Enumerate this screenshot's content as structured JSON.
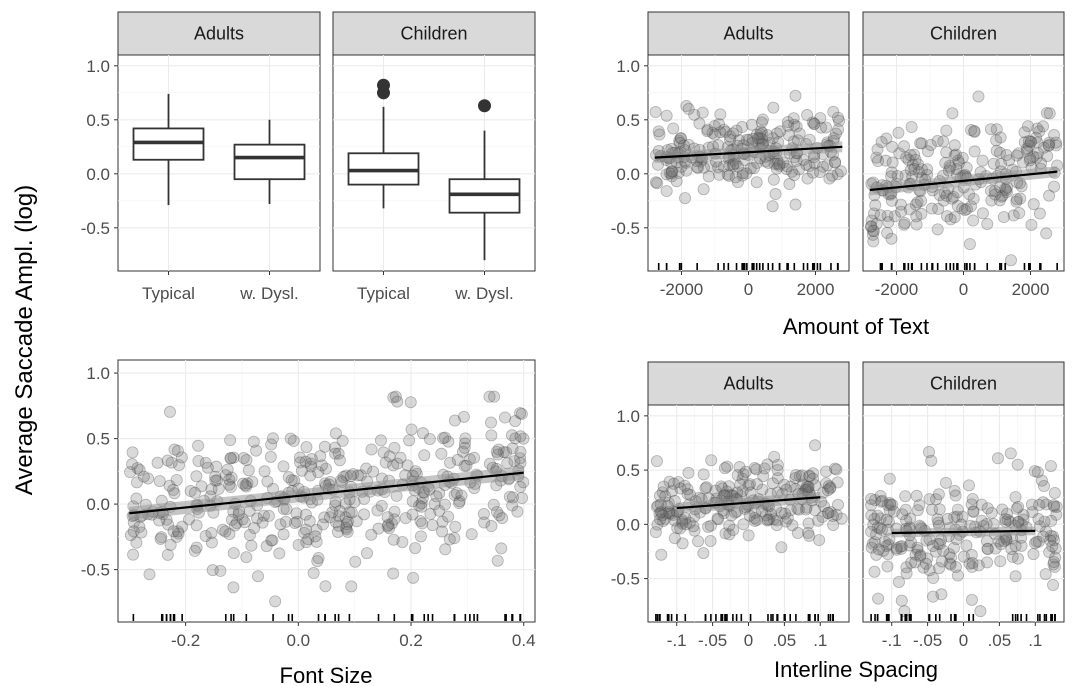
{
  "figure": {
    "y_title": "Average Saccade Ampl. (log)"
  },
  "chart_data": [
    {
      "type": "box",
      "facets": [
        "Adults",
        "Children"
      ],
      "categories": [
        "Typical",
        "w. Dysl."
      ],
      "ylim": [
        -0.9,
        1.1
      ],
      "yticks": [
        "-0.5",
        "0.0",
        "0.5",
        "1.0"
      ],
      "ytick_values": [
        -0.5,
        0.0,
        0.5,
        1.0
      ],
      "grid": true,
      "boxes": [
        {
          "facet": "Adults",
          "group": "Typical",
          "q1": 0.13,
          "median": 0.29,
          "q3": 0.42,
          "whisker_low": -0.29,
          "whisker_high": 0.74,
          "outliers": []
        },
        {
          "facet": "Adults",
          "group": "w. Dysl.",
          "q1": -0.05,
          "median": 0.15,
          "q3": 0.27,
          "whisker_low": -0.28,
          "whisker_high": 0.5,
          "outliers": []
        },
        {
          "facet": "Children",
          "group": "Typical",
          "q1": -0.1,
          "median": 0.03,
          "q3": 0.19,
          "whisker_low": -0.32,
          "whisker_high": 0.62,
          "outliers": [
            0.75,
            0.82
          ]
        },
        {
          "facet": "Children",
          "group": "w. Dysl.",
          "q1": -0.36,
          "median": -0.19,
          "q3": -0.05,
          "whisker_low": -0.8,
          "whisker_high": 0.4,
          "outliers": [
            0.63
          ]
        }
      ]
    },
    {
      "type": "scatter",
      "facets": [
        "Adults",
        "Children"
      ],
      "xlabel": "Amount of Text",
      "xlim": [
        -3000,
        3000
      ],
      "xticks": [
        "-2000",
        "0",
        "2000"
      ],
      "xtick_values": [
        -2000,
        0,
        2000
      ],
      "ylim": [
        -0.9,
        1.1
      ],
      "yticks": [
        "-0.5",
        "0.0",
        "0.5",
        "1.0"
      ],
      "ytick_values": [
        -0.5,
        0.0,
        0.5,
        1.0
      ],
      "grid": true,
      "fits": [
        {
          "facet": "Adults",
          "x": [
            -2800,
            2800
          ],
          "y": [
            0.15,
            0.25
          ],
          "ci": 0.05
        },
        {
          "facet": "Children",
          "x": [
            -2800,
            2800
          ],
          "y": [
            -0.15,
            0.02
          ],
          "ci": 0.05
        }
      ],
      "clouds": [
        {
          "facet": "Adults",
          "x_min": -2800,
          "x_max": 2800,
          "y_min": -0.3,
          "y_max": 0.75,
          "n": 230,
          "seed": 11
        },
        {
          "facet": "Children",
          "x_min": -2800,
          "x_max": 2800,
          "y_min": -0.8,
          "y_max": 0.82,
          "n": 230,
          "seed": 23
        }
      ]
    },
    {
      "type": "scatter",
      "xlabel": "Font Size",
      "xlim": [
        -0.32,
        0.42
      ],
      "xticks": [
        "-0.2",
        "0.0",
        "0.2",
        "0.4"
      ],
      "xtick_values": [
        -0.2,
        0.0,
        0.2,
        0.4
      ],
      "ylim": [
        -0.9,
        1.1
      ],
      "yticks": [
        "-0.5",
        "0.0",
        "0.5",
        "1.0"
      ],
      "ytick_values": [
        -0.5,
        0.0,
        0.5,
        1.0
      ],
      "grid": true,
      "fits": [
        {
          "x": [
            -0.3,
            0.4
          ],
          "y": [
            -0.07,
            0.24
          ],
          "ci": 0.05
        }
      ],
      "clouds": [
        {
          "x_min": -0.3,
          "x_max": 0.4,
          "y_min": -0.8,
          "y_max": 0.82,
          "n": 420,
          "seed": 37
        }
      ]
    },
    {
      "type": "scatter",
      "facets": [
        "Adults",
        "Children"
      ],
      "xlabel": "Interline Spacing",
      "xlim": [
        -0.14,
        0.14
      ],
      "xticks": [
        "-.1",
        "-.05",
        "0",
        ".05",
        ".1"
      ],
      "xtick_values": [
        -0.1,
        -0.05,
        0.0,
        0.05,
        0.1
      ],
      "ylim": [
        -0.9,
        1.1
      ],
      "yticks": [
        "-0.5",
        "0.0",
        "0.5",
        "1.0"
      ],
      "ytick_values": [
        -0.5,
        0.0,
        0.5,
        1.0
      ],
      "grid": true,
      "fits": [
        {
          "facet": "Adults",
          "x": [
            -0.1,
            0.1
          ],
          "y": [
            0.15,
            0.25
          ],
          "ci": 0.05
        },
        {
          "facet": "Children",
          "x": [
            -0.1,
            0.1
          ],
          "y": [
            -0.08,
            -0.06
          ],
          "ci": 0.04
        }
      ],
      "clouds": [
        {
          "facet": "Adults",
          "x_min": -0.13,
          "x_max": 0.13,
          "y_min": -0.28,
          "y_max": 0.75,
          "n": 230,
          "seed": 51
        },
        {
          "facet": "Children",
          "x_min": -0.13,
          "x_max": 0.13,
          "y_min": -0.8,
          "y_max": 0.82,
          "n": 230,
          "seed": 67
        }
      ]
    }
  ]
}
